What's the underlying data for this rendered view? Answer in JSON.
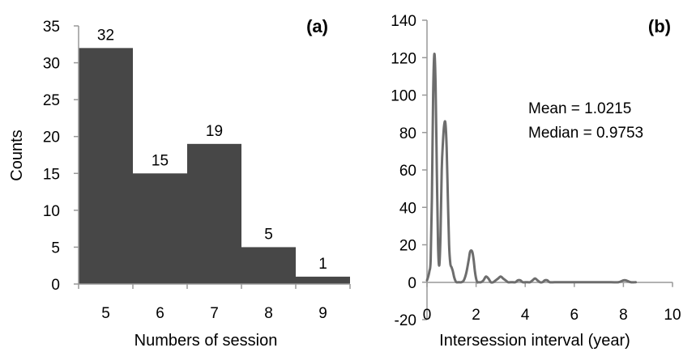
{
  "chart_data": [
    {
      "type": "bar",
      "panel_label": "(a)",
      "categories": [
        "5",
        "6",
        "7",
        "8",
        "9"
      ],
      "values": [
        32,
        15,
        19,
        5,
        1
      ],
      "data_labels": [
        "32",
        "15",
        "19",
        "5",
        "1"
      ],
      "xlabel": "Numbers of session",
      "ylabel": "Counts",
      "ylim": [
        0,
        35
      ],
      "yticks": [
        "0",
        "5",
        "10",
        "15",
        "20",
        "25",
        "30",
        "35"
      ],
      "bar_color": "#474747",
      "grid": false
    },
    {
      "type": "line",
      "panel_label": "(b)",
      "xlabel": "Intersession interval (year)",
      "ylabel": "",
      "xlim": [
        0,
        10
      ],
      "ylim": [
        -20,
        140
      ],
      "xticks": [
        "0",
        "2",
        "4",
        "6",
        "8",
        "10"
      ],
      "yticks": [
        "-20",
        "0",
        "20",
        "40",
        "60",
        "80",
        "100",
        "120",
        "140"
      ],
      "line_color": "#6d6d6d",
      "grid": false,
      "annotations": [
        "Mean = 1.0215",
        "Median = 0.9753"
      ],
      "series": [
        {
          "x": [
            0.0,
            0.05,
            0.1,
            0.15,
            0.2,
            0.25,
            0.3,
            0.35,
            0.4,
            0.45,
            0.5,
            0.55,
            0.6,
            0.65,
            0.7,
            0.75,
            0.8,
            0.85,
            0.9,
            0.95,
            1.0,
            1.05,
            1.1,
            1.15,
            1.2,
            1.3,
            1.4,
            1.5,
            1.6,
            1.7,
            1.75,
            1.8,
            1.85,
            1.9,
            1.95,
            2.0,
            2.05,
            2.1,
            2.2,
            2.3,
            2.4,
            2.5,
            2.6,
            2.7,
            2.8,
            2.9,
            3.0,
            3.1,
            3.2,
            3.3,
            3.4,
            3.5,
            3.6,
            3.7,
            3.8,
            3.9,
            4.0,
            4.1,
            4.2,
            4.3,
            4.4,
            4.5,
            4.6,
            4.7,
            4.8,
            4.9,
            5.0,
            5.2,
            5.5,
            6.0,
            6.5,
            7.0,
            7.5,
            7.8,
            8.0,
            8.1,
            8.3,
            8.5
          ],
          "y": [
            1,
            3,
            6,
            12,
            45,
            100,
            122,
            105,
            60,
            20,
            9,
            25,
            60,
            75,
            84,
            85,
            72,
            45,
            20,
            10,
            8,
            6,
            3,
            1,
            0,
            0,
            0,
            1,
            5,
            12,
            16,
            17,
            16,
            12,
            6,
            2,
            0,
            0,
            0,
            1,
            3,
            2,
            0,
            0,
            1,
            2,
            3,
            2,
            1,
            0,
            0,
            0,
            0,
            1,
            1,
            0,
            0,
            0,
            0,
            1,
            2,
            1,
            0,
            0,
            1,
            1,
            0,
            0,
            0,
            0,
            0,
            0,
            0,
            0,
            1,
            1,
            0,
            0
          ]
        }
      ]
    }
  ]
}
